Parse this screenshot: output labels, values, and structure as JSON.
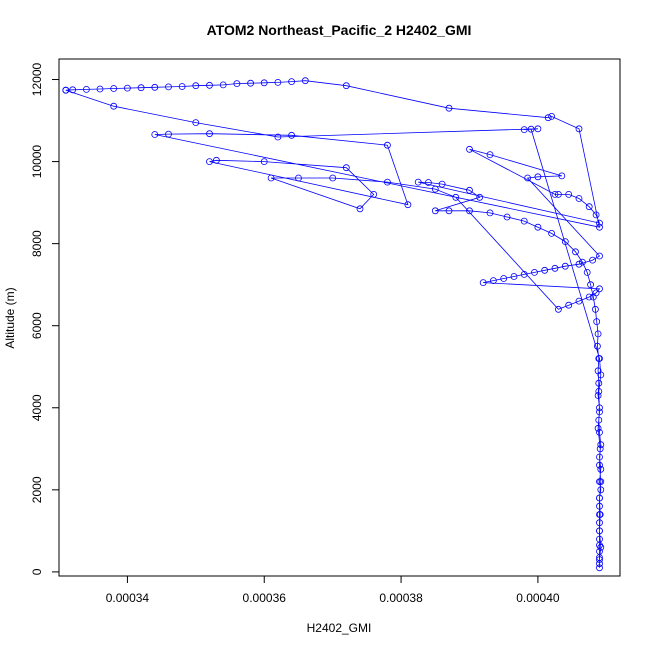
{
  "chart_data": {
    "type": "scatter",
    "title": "ATOM2 Northeast_Pacific_2 H2402_GMI",
    "xlabel": "H2402_GMI",
    "ylabel": "Altitude (m)",
    "xlim": [
      0.00033,
      0.000412
    ],
    "ylim": [
      -100,
      12500
    ],
    "xticks": [
      0.00034,
      0.00036,
      0.00038,
      0.0004
    ],
    "xtick_labels": [
      "0.00034",
      "0.00036",
      "0.00038",
      "0.00040"
    ],
    "yticks": [
      0,
      2000,
      4000,
      6000,
      8000,
      10000,
      12000
    ],
    "ytick_labels": [
      "0",
      "2000",
      "4000",
      "6000",
      "8000",
      "10000",
      "12000"
    ],
    "grid": false,
    "legend": "none",
    "series": [
      {
        "color": "#0000ff",
        "marker": "open-circle",
        "line": true,
        "points": [
          [
            0.000409,
            100
          ],
          [
            0.000409,
            200
          ],
          [
            0.000409,
            350
          ],
          [
            0.000409,
            500
          ],
          [
            0.000409,
            650
          ],
          [
            0.000409,
            800
          ],
          [
            0.000409,
            1000
          ],
          [
            0.000409,
            1200
          ],
          [
            0.000409,
            1400
          ],
          [
            0.000409,
            1600
          ],
          [
            0.000409,
            1800
          ],
          [
            0.0004092,
            2000
          ],
          [
            0.000409,
            2200
          ],
          [
            0.0004092,
            2500
          ],
          [
            0.000409,
            2800
          ],
          [
            0.0004092,
            3100
          ],
          [
            0.000409,
            3400
          ],
          [
            0.0004089,
            3700
          ],
          [
            0.000409,
            4000
          ],
          [
            0.0004088,
            4300
          ],
          [
            0.0004089,
            4600
          ],
          [
            0.0004088,
            4900
          ],
          [
            0.0004089,
            5200
          ],
          [
            0.0004087,
            5500
          ],
          [
            0.0004088,
            5800
          ],
          [
            0.0004086,
            6100
          ],
          [
            0.0004084,
            6400
          ],
          [
            0.0004081,
            6700
          ],
          [
            0.0004077,
            7000
          ],
          [
            0.0004072,
            7300
          ],
          [
            0.0004065,
            7550
          ],
          [
            0.0004055,
            7800
          ],
          [
            0.000404,
            8050
          ],
          [
            0.000402,
            8250
          ],
          [
            0.0004,
            8400
          ],
          [
            0.000398,
            8550
          ],
          [
            0.0003955,
            8650
          ],
          [
            0.000393,
            8750
          ],
          [
            0.00039,
            8800
          ],
          [
            0.000387,
            8800
          ],
          [
            0.000385,
            8800
          ],
          [
            0.0003915,
            9130
          ],
          [
            0.00039,
            9300
          ],
          [
            0.000386,
            9450
          ],
          [
            0.000384,
            9490
          ],
          [
            0.0003825,
            9500
          ],
          [
            0.000409,
            8500
          ],
          [
            0.0004085,
            8700
          ],
          [
            0.0004075,
            8900
          ],
          [
            0.000406,
            9100
          ],
          [
            0.0004045,
            9200
          ],
          [
            0.000403,
            9200
          ],
          [
            0.0004025,
            9200
          ],
          [
            0.00039,
            10300
          ],
          [
            0.000393,
            10170
          ],
          [
            0.0004035,
            9650
          ],
          [
            0.0004,
            9630
          ],
          [
            0.0003985,
            9600
          ],
          [
            0.000409,
            7700
          ],
          [
            0.000408,
            7600
          ],
          [
            0.000406,
            7500
          ],
          [
            0.000404,
            7450
          ],
          [
            0.0004025,
            7400
          ],
          [
            0.000401,
            7350
          ],
          [
            0.0003995,
            7300
          ],
          [
            0.000398,
            7250
          ],
          [
            0.0003965,
            7200
          ],
          [
            0.000395,
            7150
          ],
          [
            0.0003935,
            7100
          ],
          [
            0.000392,
            7050
          ],
          [
            0.000409,
            6900
          ],
          [
            0.0004085,
            6800
          ],
          [
            0.0004075,
            6700
          ],
          [
            0.000406,
            6600
          ],
          [
            0.0004045,
            6500
          ],
          [
            0.000403,
            6400
          ],
          [
            0.000388,
            9130
          ],
          [
            0.000385,
            9330
          ],
          [
            0.000378,
            9500
          ],
          [
            0.00037,
            9600
          ],
          [
            0.000365,
            9600
          ],
          [
            0.000361,
            9600
          ],
          [
            0.000374,
            8850
          ],
          [
            0.000376,
            9200
          ],
          [
            0.000372,
            9850
          ],
          [
            0.00036,
            10000
          ],
          [
            0.000353,
            10030
          ],
          [
            0.000352,
            10000
          ],
          [
            0.000381,
            8950
          ],
          [
            0.000378,
            10400
          ],
          [
            0.000364,
            10640
          ],
          [
            0.000352,
            10680
          ],
          [
            0.000346,
            10670
          ],
          [
            0.000344,
            10660
          ],
          [
            0.000409,
            8400
          ],
          [
            0.000406,
            10800
          ],
          [
            0.000402,
            11100
          ],
          [
            0.0004015,
            11070
          ],
          [
            0.000387,
            11300
          ],
          [
            0.000372,
            11850
          ],
          [
            0.000366,
            11970
          ],
          [
            0.000364,
            11950
          ],
          [
            0.000362,
            11930
          ],
          [
            0.00036,
            11920
          ],
          [
            0.000358,
            11910
          ],
          [
            0.000356,
            11900
          ],
          [
            0.000354,
            11870
          ],
          [
            0.000352,
            11860
          ],
          [
            0.00035,
            11850
          ],
          [
            0.000348,
            11830
          ],
          [
            0.000346,
            11820
          ],
          [
            0.000344,
            11810
          ],
          [
            0.000342,
            11800
          ],
          [
            0.00034,
            11790
          ],
          [
            0.000338,
            11780
          ],
          [
            0.000336,
            11770
          ],
          [
            0.000334,
            11760
          ],
          [
            0.000332,
            11750
          ],
          [
            0.000331,
            11740
          ],
          [
            0.000331,
            11740
          ],
          [
            0.000338,
            11350
          ],
          [
            0.00035,
            10950
          ],
          [
            0.000362,
            10600
          ],
          [
            0.0004,
            10800
          ],
          [
            0.000398,
            10780
          ],
          [
            0.000399,
            10790
          ],
          [
            0.000409,
            5200
          ],
          [
            0.0004092,
            4800
          ],
          [
            0.0004089,
            4400
          ],
          [
            0.000409,
            3900
          ],
          [
            0.0004088,
            3500
          ],
          [
            0.0004091,
            3000
          ],
          [
            0.000409,
            2600
          ],
          [
            0.0004092,
            2200
          ],
          [
            0.000409,
            1800
          ],
          [
            0.0004091,
            1400
          ],
          [
            0.000409,
            1000
          ],
          [
            0.0004092,
            600
          ],
          [
            0.000409,
            300
          ]
        ]
      }
    ]
  }
}
